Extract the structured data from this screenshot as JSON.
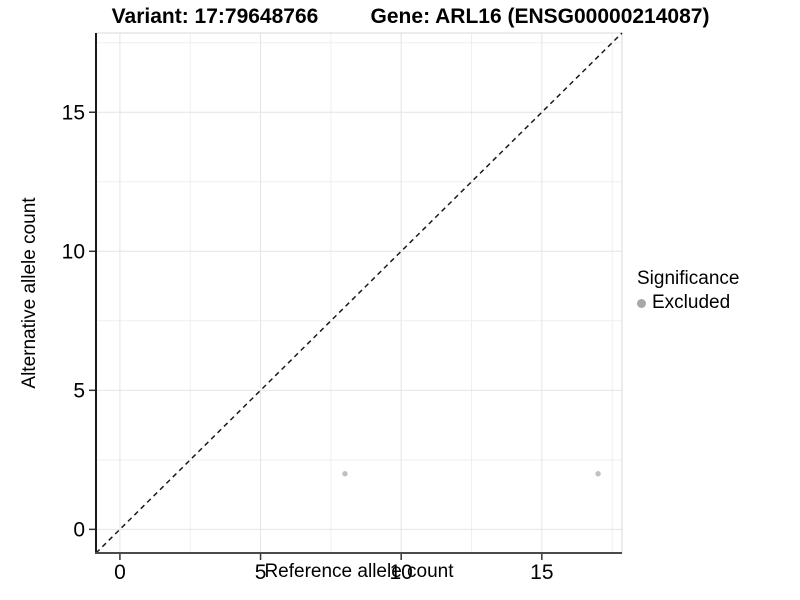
{
  "chart_data": {
    "type": "scatter",
    "title_variant": "Variant: 17:79648766",
    "title_gene": "Gene: ARL16 (ENSG00000214087)",
    "xlabel": "Reference allele count",
    "ylabel": "Alternative allele count",
    "xlim": [
      -0.85,
      17.85
    ],
    "ylim": [
      -0.85,
      17.85
    ],
    "xticks": [
      0,
      5,
      10,
      15
    ],
    "yticks": [
      0,
      5,
      10,
      15
    ],
    "xticks_minor": [
      2.5,
      7.5,
      12.5,
      17.5
    ],
    "yticks_minor": [
      2.5,
      7.5,
      12.5,
      17.5
    ],
    "grid": "major+minor",
    "reference_line": {
      "type": "identity",
      "style": "dashed",
      "color": "#1a1a1a"
    },
    "series": [
      {
        "name": "Excluded",
        "color": "#c0c0c0",
        "points": [
          {
            "x": 8,
            "y": 2
          },
          {
            "x": 17,
            "y": 2
          }
        ]
      }
    ],
    "legend": {
      "title": "Significance",
      "position": "right",
      "items": [
        {
          "label": "Excluded",
          "color": "#a8a8a8"
        }
      ]
    }
  },
  "colors": {
    "background": "#ffffff",
    "grid_major": "#e4e4e4",
    "grid_minor": "#efefef",
    "panel_border": "#d8d8d8",
    "axis_line_y": "#1a1a1a",
    "axis_line_x": "#4a4a4a",
    "tick": "#333333",
    "text": "#000000"
  }
}
